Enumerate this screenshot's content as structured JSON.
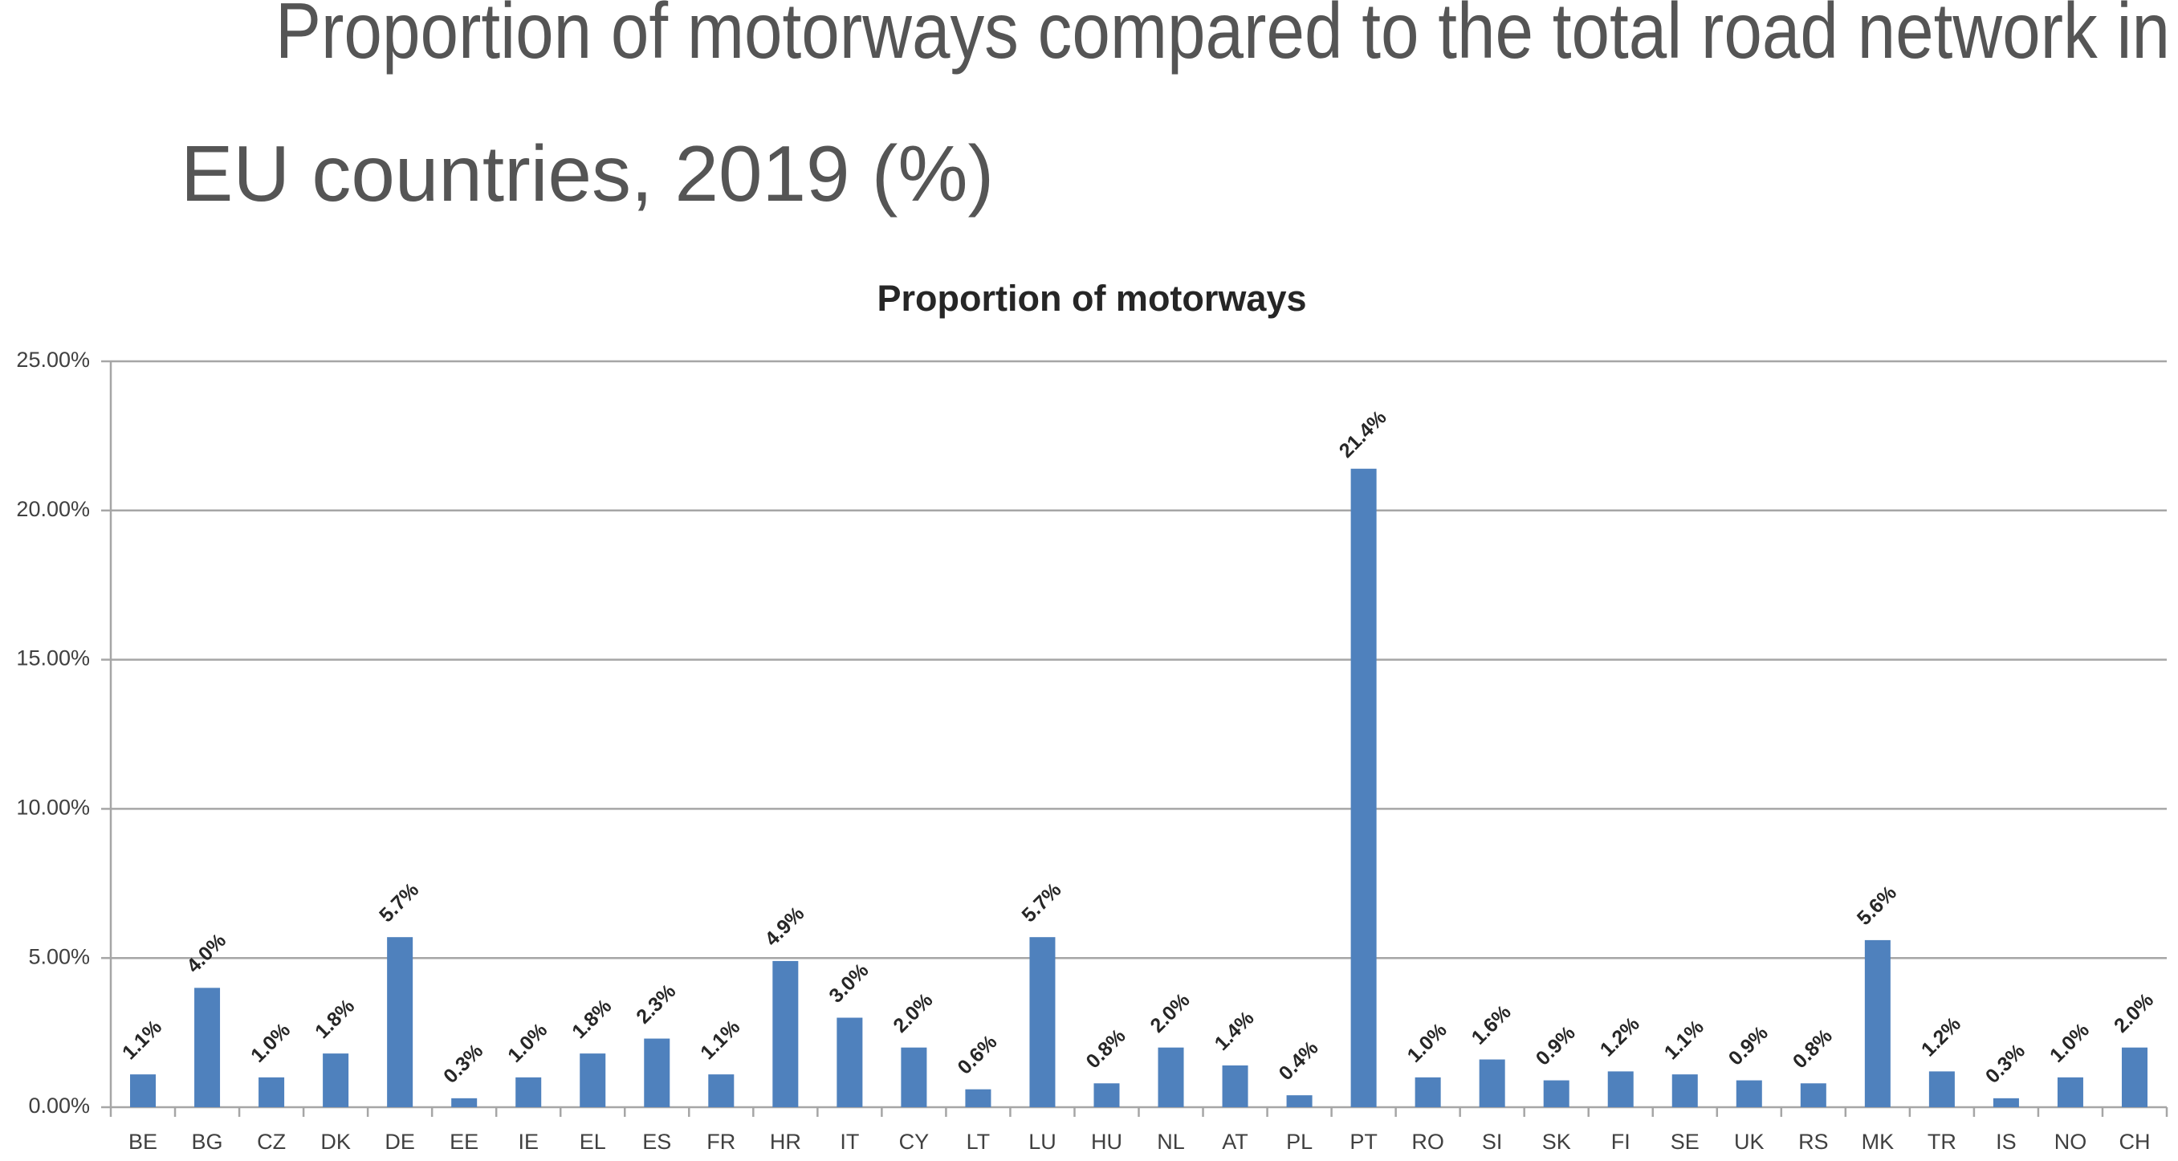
{
  "chart_data": {
    "type": "bar",
    "page_title": [
      "Proportion of motorways compared to the total road network in",
      "EU countries, 2019 (%)"
    ],
    "title": "Proportion of motorways",
    "categories": [
      "BE",
      "BG",
      "CZ",
      "DK",
      "DE",
      "EE",
      "IE",
      "EL",
      "ES",
      "FR",
      "HR",
      "IT",
      "CY",
      "LT",
      "LU",
      "HU",
      "NL",
      "AT",
      "PL",
      "PT",
      "RO",
      "SI",
      "SK",
      "FI",
      "SE",
      "UK",
      "RS",
      "MK",
      "TR",
      "IS",
      "NO",
      "CH"
    ],
    "values": [
      1.1,
      4.0,
      1.0,
      1.8,
      5.7,
      0.3,
      1.0,
      1.8,
      2.3,
      1.1,
      4.9,
      3.0,
      2.0,
      0.6,
      5.7,
      0.8,
      2.0,
      1.4,
      0.4,
      21.4,
      1.0,
      1.6,
      0.9,
      1.2,
      1.1,
      0.9,
      0.8,
      5.6,
      1.2,
      0.3,
      1.0,
      2.0
    ],
    "value_labels": [
      "1.1%",
      "4.0%",
      "1.0%",
      "1.8%",
      "5.7%",
      "0.3%",
      "1.0%",
      "1.8%",
      "2.3%",
      "1.1%",
      "4.9%",
      "3.0%",
      "2.0%",
      "0.6%",
      "5.7%",
      "0.8%",
      "2.0%",
      "1.4%",
      "0.4%",
      "21.4%",
      "1.0%",
      "1.6%",
      "0.9%",
      "1.2%",
      "1.1%",
      "0.9%",
      "0.8%",
      "5.6%",
      "1.2%",
      "0.3%",
      "1.0%",
      "2.0%"
    ],
    "color": "#4f81bd",
    "ylim": [
      0,
      25
    ],
    "yticks": [
      {
        "value": 0,
        "label": "0.00%"
      },
      {
        "value": 5,
        "label": "5.00%"
      },
      {
        "value": 10,
        "label": "10.00%"
      },
      {
        "value": 15,
        "label": "15.00%"
      },
      {
        "value": 20,
        "label": "20.00%"
      },
      {
        "value": 25,
        "label": "25.00%"
      }
    ],
    "grid": true
  }
}
